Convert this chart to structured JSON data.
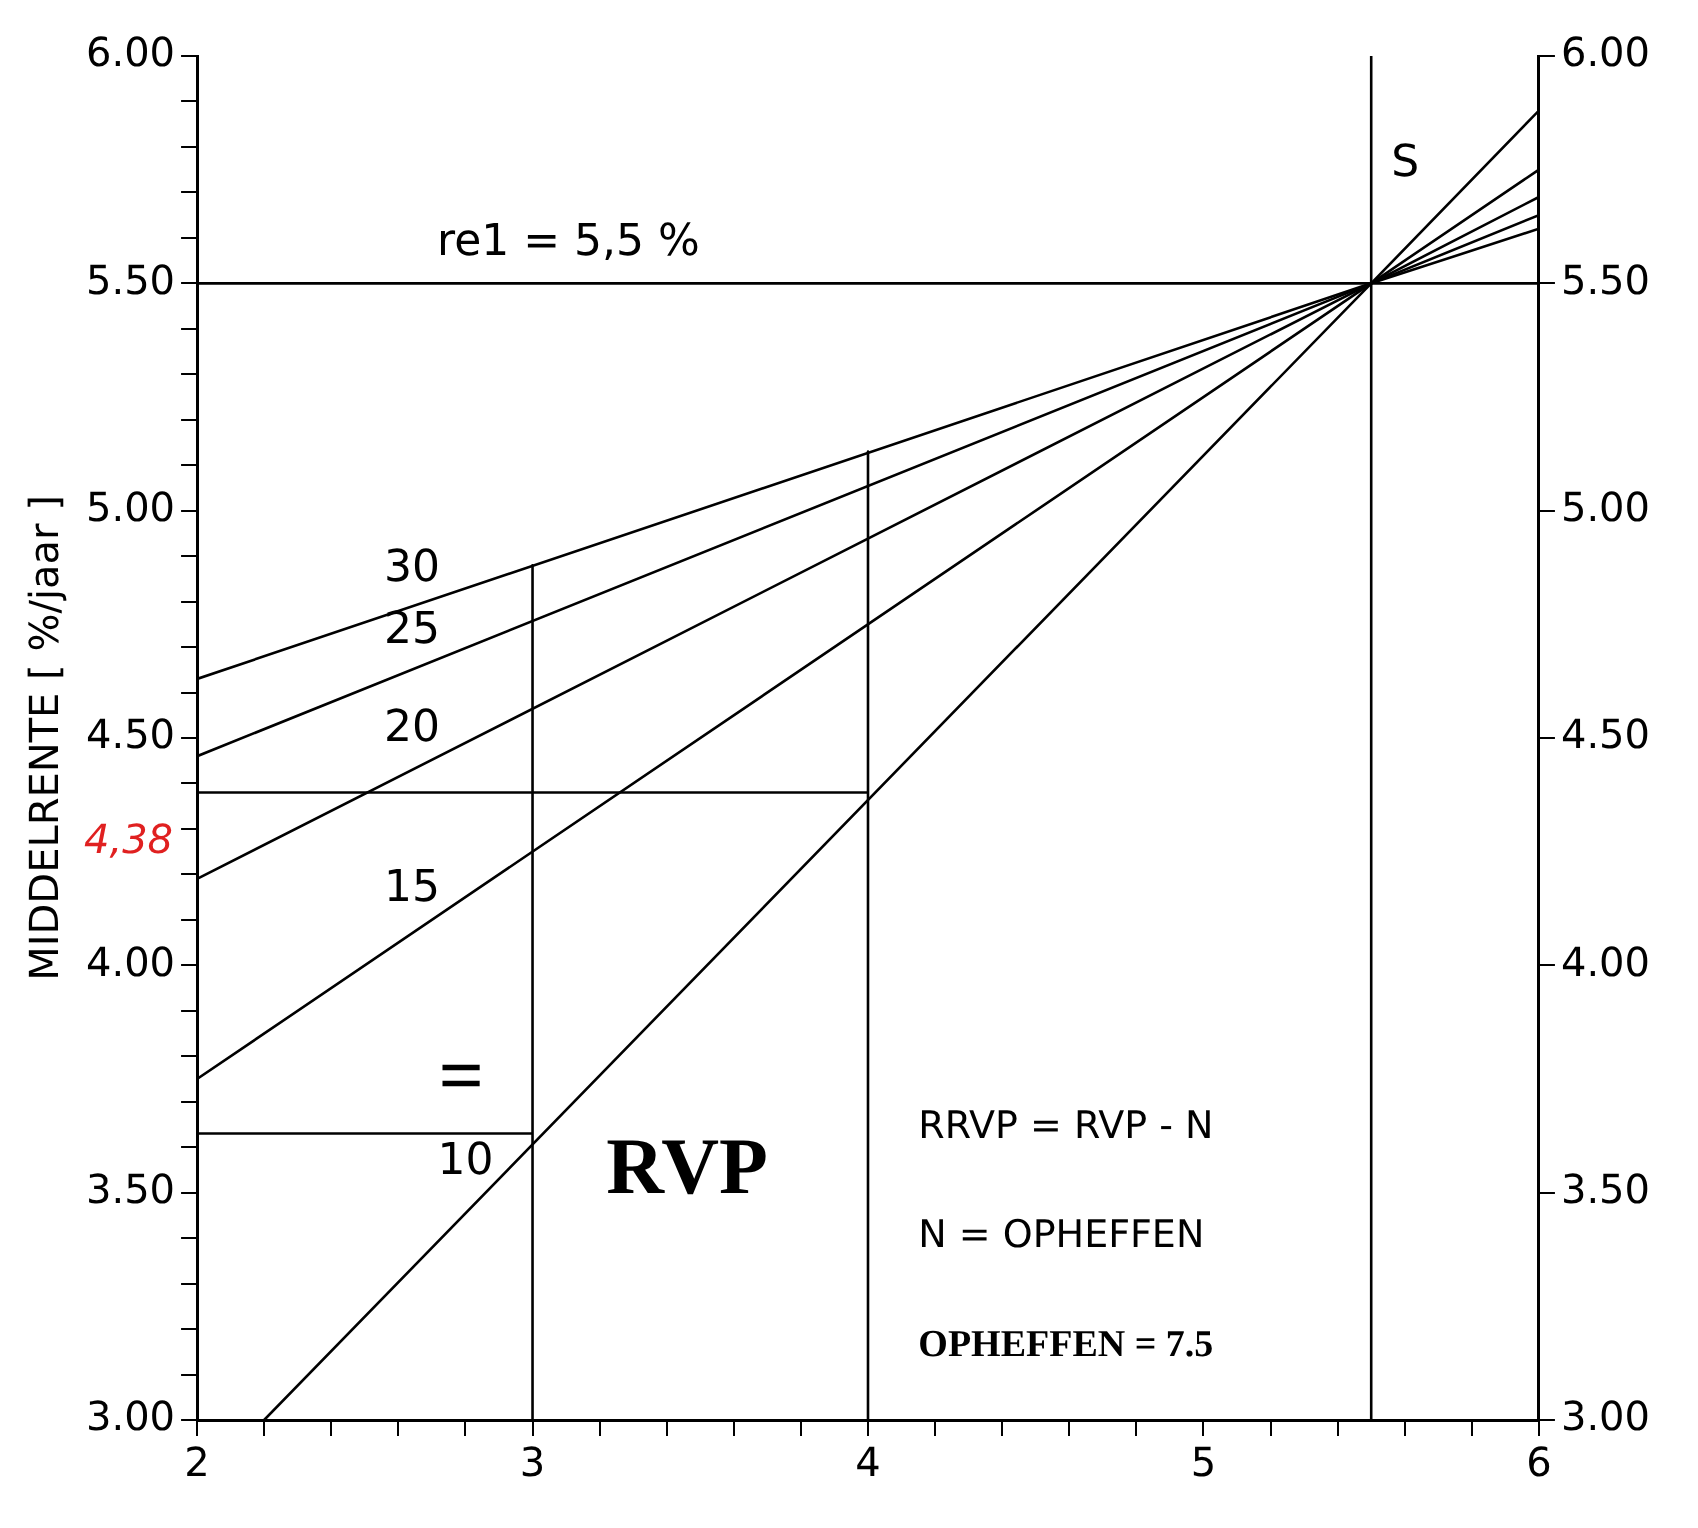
{
  "chart_data": {
    "type": "line",
    "ylabel": "MIDDELRENTE [ %/jaar ]",
    "marker": "none",
    "xlim": [
      2,
      6
    ],
    "xticks": [
      2,
      {
        "value": 2.2,
        "label": null
      },
      {
        "value": 2.4,
        "label": null
      },
      {
        "value": 2.6,
        "label": null
      },
      {
        "value": 2.8,
        "label": null
      },
      3,
      {
        "value": 3.2,
        "label": null
      },
      {
        "value": 3.4,
        "label": null
      },
      {
        "value": 3.6,
        "label": null
      },
      {
        "value": 3.8,
        "label": null
      },
      4,
      {
        "value": 4.2,
        "label": null
      },
      {
        "value": 4.4,
        "label": null
      },
      {
        "value": 4.6,
        "label": null
      },
      {
        "value": 4.8,
        "label": null
      },
      5,
      {
        "value": 5.2,
        "label": null
      },
      {
        "value": 5.4,
        "label": null
      },
      {
        "value": 5.6,
        "label": null
      },
      {
        "value": 5.8,
        "label": null
      },
      6
    ],
    "ylim": [
      3,
      6
    ],
    "yticks": [
      {
        "value": 3,
        "label": "3.00"
      },
      {
        "value": 3.1,
        "label": null
      },
      {
        "value": 3.2,
        "label": null
      },
      {
        "value": 3.3,
        "label": null
      },
      {
        "value": 3.4,
        "label": null
      },
      {
        "value": 3.5,
        "label": "3.50"
      },
      {
        "value": 3.6,
        "label": null
      },
      {
        "value": 3.7,
        "label": null
      },
      {
        "value": 3.8,
        "label": null
      },
      {
        "value": 3.9,
        "label": null
      },
      {
        "value": 4,
        "label": "4.00"
      },
      {
        "value": 4.1,
        "label": null
      },
      {
        "value": 4.2,
        "label": null
      },
      {
        "value": 4.3,
        "label": null
      },
      {
        "value": 4.4,
        "label": null
      },
      {
        "value": 4.5,
        "label": "4.50"
      },
      {
        "value": 4.6,
        "label": null
      },
      {
        "value": 4.7,
        "label": null
      },
      {
        "value": 4.8,
        "label": null
      },
      {
        "value": 4.9,
        "label": null
      },
      {
        "value": 5,
        "label": "5.00"
      },
      {
        "value": 5.1,
        "label": null
      },
      {
        "value": 5.2,
        "label": null
      },
      {
        "value": 5.3,
        "label": null
      },
      {
        "value": 5.4,
        "label": null
      },
      {
        "value": 5.5,
        "label": "5.50"
      },
      {
        "value": 5.6,
        "label": null
      },
      {
        "value": 5.7,
        "label": null
      },
      {
        "value": 5.8,
        "label": null
      },
      {
        "value": 5.9,
        "label": null
      },
      {
        "value": 6,
        "label": "6.00"
      }
    ],
    "y2lim": [
      3,
      6
    ],
    "y2ticks": [
      {
        "value": 3,
        "label": "3.00"
      },
      {
        "value": 3.5,
        "label": "3.50"
      },
      {
        "value": 4,
        "label": "4.00"
      },
      {
        "value": 4.5,
        "label": "4.50"
      },
      {
        "value": 5,
        "label": "5.00"
      },
      {
        "value": 5.5,
        "label": "5.50"
      },
      {
        "value": 6,
        "label": "6.00"
      }
    ],
    "series": [
      {
        "name": "10",
        "color": "#000000",
        "x": [
          2.2,
          5.5,
          6
        ],
        "values": [
          3.0,
          5.5,
          5.88
        ]
      },
      {
        "name": "15",
        "color": "#000000",
        "x": [
          2,
          5.5,
          6
        ],
        "values": [
          3.75,
          5.5,
          5.75
        ]
      },
      {
        "name": "20",
        "color": "#000000",
        "x": [
          2,
          5.5,
          6
        ],
        "values": [
          4.19,
          5.5,
          5.69
        ]
      },
      {
        "name": "25",
        "color": "#000000",
        "x": [
          2,
          5.5,
          6
        ],
        "values": [
          4.46,
          5.5,
          5.65
        ]
      },
      {
        "name": "30",
        "color": "#000000",
        "x": [
          2,
          5.5,
          6
        ],
        "values": [
          4.63,
          5.5,
          5.62
        ]
      },
      {
        "color": "#000000",
        "x": [
          3,
          3
        ],
        "values": [
          4.88,
          3.0
        ]
      },
      {
        "color": "#000000",
        "x": [
          4,
          4
        ],
        "values": [
          5.13,
          3.0
        ]
      },
      {
        "color": "#000000",
        "x": [
          4,
          2
        ],
        "values": [
          4.38,
          4.38
        ]
      },
      {
        "color": "#000000",
        "x": [
          3,
          2
        ],
        "values": [
          3.63,
          3.63
        ]
      }
    ],
    "ref_lines": [
      {
        "axis": "y",
        "value": 5.5,
        "label": "re1 = 5,5 %"
      },
      {
        "axis": "x",
        "value": 5.5,
        "label": "S"
      }
    ],
    "annotations": [
      {
        "text": "4,38",
        "x": 2,
        "y": 4.38
      },
      "RVP",
      "=",
      "RRVP = RVP - N",
      "N = OPHEFFEN",
      "OPHEFFEN = 7.5"
    ]
  }
}
